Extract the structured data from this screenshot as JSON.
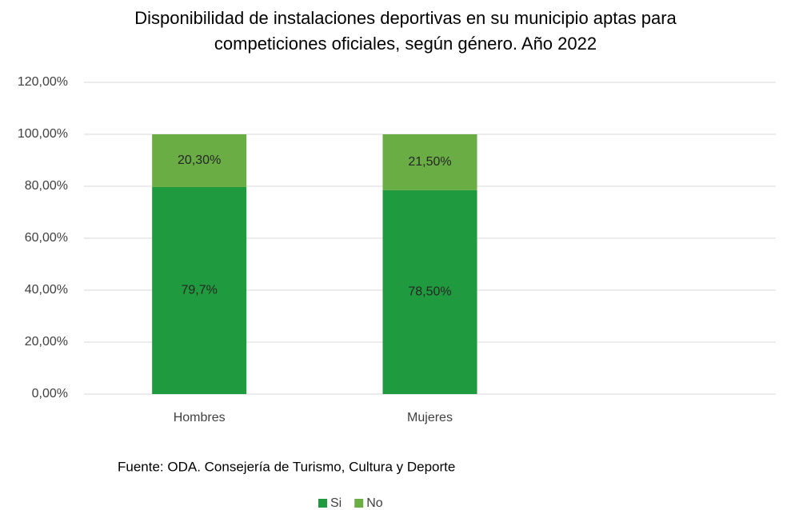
{
  "chart_data": {
    "type": "stacked_bar",
    "title": [
      "Disponibilidad de instalaciones deportivas en su municipio aptas para",
      "competiciones oficiales, según género. Año 2022"
    ],
    "categories": [
      "Hombres",
      "Mujeres",
      null
    ],
    "series": [
      {
        "name": "Si",
        "color": "#1f9a3e",
        "values": [
          79.7,
          78.5,
          null
        ],
        "value_labels": [
          "79,7%",
          "78,50%",
          null
        ]
      },
      {
        "name": "No",
        "color": "#6aad45",
        "values": [
          20.3,
          21.5,
          null
        ],
        "value_labels": [
          "20,30%",
          "21,50%",
          null
        ]
      }
    ],
    "ylim": [
      0,
      120
    ],
    "yticks": [
      {
        "value": 0,
        "label": "0,00%"
      },
      {
        "value": 20,
        "label": "20,00%"
      },
      {
        "value": 40,
        "label": "40,00%"
      },
      {
        "value": 60,
        "label": "60,00%"
      },
      {
        "value": 80,
        "label": "80,00%"
      },
      {
        "value": 100,
        "label": "100,00%"
      },
      {
        "value": 120,
        "label": "120,00%"
      }
    ],
    "grid": true,
    "annotation": "Fuente: ODA. Consejería de Turismo, Cultura y Deporte",
    "legend": "bottom"
  }
}
